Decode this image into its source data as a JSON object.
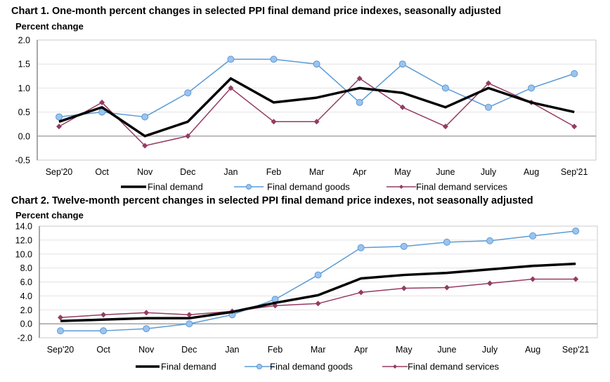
{
  "chart_data": [
    {
      "type": "line",
      "title": "Chart 1. One-month percent changes in selected PPI final demand price indexes, seasonally adjusted",
      "ylabel": "Percent change",
      "xlabel": "",
      "categories": [
        "Sep'20",
        "Oct",
        "Nov",
        "Dec",
        "Jan",
        "Feb",
        "Mar",
        "Apr",
        "May",
        "June",
        "July",
        "Aug",
        "Sep'21"
      ],
      "ylim": [
        -0.5,
        2.0
      ],
      "yticks": [
        2.0,
        1.5,
        1.0,
        0.5,
        0.0,
        -0.5
      ],
      "ytick_labels": [
        "2.0",
        "1.5",
        "1.0",
        "0.5",
        "0.0",
        "-0.5"
      ],
      "grid": true,
      "legend_position": "bottom",
      "series": [
        {
          "name": "Final demand",
          "color": "#000000",
          "marker": "none",
          "values": [
            0.3,
            0.6,
            0.0,
            0.3,
            1.2,
            0.7,
            0.8,
            1.0,
            0.9,
            0.6,
            1.0,
            0.7,
            0.5
          ]
        },
        {
          "name": "Final demand goods",
          "color": "#5b9bd5",
          "marker": "circle",
          "values": [
            0.4,
            0.5,
            0.4,
            0.9,
            1.6,
            1.6,
            1.5,
            0.7,
            1.5,
            1.0,
            0.6,
            1.0,
            1.3
          ]
        },
        {
          "name": "Final demand services",
          "color": "#953b62",
          "marker": "diamond",
          "values": [
            0.2,
            0.7,
            -0.2,
            0.0,
            1.0,
            0.3,
            0.3,
            1.2,
            0.6,
            0.2,
            1.1,
            0.7,
            0.2
          ]
        }
      ]
    },
    {
      "type": "line",
      "title": "Chart 2. Twelve-month percent changes in selected PPI final demand price indexes, not seasonally adjusted",
      "ylabel": "Percent change",
      "xlabel": "",
      "categories": [
        "Sep'20",
        "Oct",
        "Nov",
        "Dec",
        "Jan",
        "Feb",
        "Mar",
        "Apr",
        "May",
        "June",
        "July",
        "Aug",
        "Sep'21"
      ],
      "ylim": [
        -2.0,
        14.0
      ],
      "yticks": [
        14.0,
        12.0,
        10.0,
        8.0,
        6.0,
        4.0,
        2.0,
        0.0,
        -2.0
      ],
      "ytick_labels": [
        "14.0",
        "12.0",
        "10.0",
        "8.0",
        "6.0",
        "4.0",
        "2.0",
        "0.0",
        "-2.0"
      ],
      "grid": true,
      "legend_position": "bottom",
      "series": [
        {
          "name": "Final demand",
          "color": "#000000",
          "marker": "none",
          "values": [
            0.4,
            0.6,
            0.8,
            0.8,
            1.7,
            3.0,
            4.1,
            6.5,
            7.0,
            7.3,
            7.8,
            8.3,
            8.6
          ]
        },
        {
          "name": "Final demand goods",
          "color": "#5b9bd5",
          "marker": "circle",
          "values": [
            -1.0,
            -1.0,
            -0.7,
            0.0,
            1.3,
            3.5,
            7.0,
            10.9,
            11.1,
            11.7,
            11.9,
            12.6,
            13.3
          ]
        },
        {
          "name": "Final demand services",
          "color": "#953b62",
          "marker": "diamond",
          "values": [
            0.9,
            1.3,
            1.6,
            1.3,
            1.8,
            2.6,
            2.9,
            4.5,
            5.1,
            5.2,
            5.8,
            6.4,
            6.4
          ]
        }
      ]
    }
  ]
}
